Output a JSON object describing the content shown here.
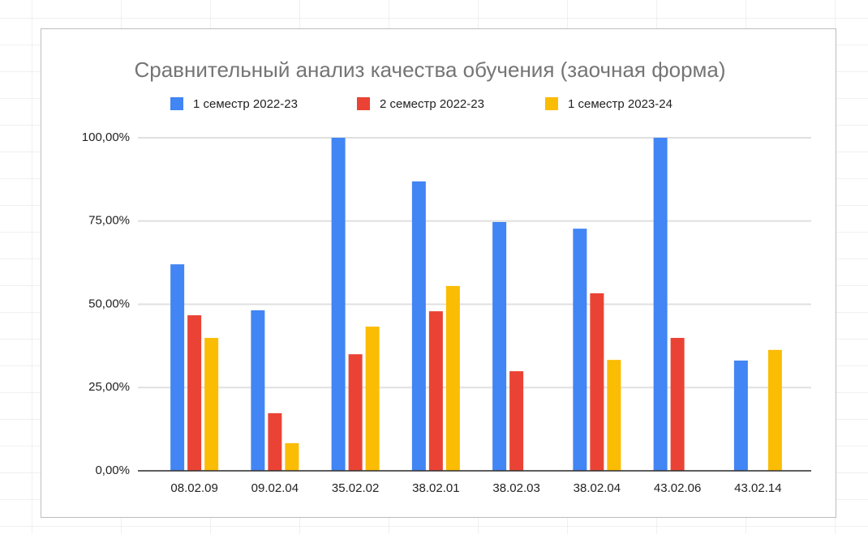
{
  "chart_data": {
    "type": "bar",
    "title": "Сравнительный анализ качества обучения (заочная форма)",
    "categories": [
      "08.02.09",
      "09.02.04",
      "35.02.02",
      "38.02.01",
      "38.02.03",
      "38.02.04",
      "43.02.06",
      "43.02.14"
    ],
    "series": [
      {
        "name": "1 семестр 2022-23",
        "color": "#4285f4",
        "values": [
          62.0,
          48.2,
          100,
          86.9,
          74.7,
          72.7,
          100,
          33.1
        ]
      },
      {
        "name": "2 семестр 2022-23",
        "color": "#ea4335",
        "values": [
          46.7,
          17.3,
          35.0,
          47.9,
          29.9,
          53.3,
          39.9,
          null
        ]
      },
      {
        "name": "1 семестр 2023-24",
        "color": "#fbbc04",
        "values": [
          39.9,
          8.3,
          43.3,
          55.5,
          null,
          33.3,
          null,
          36.3
        ]
      }
    ],
    "ylim": [
      0,
      100
    ],
    "yticks": [
      {
        "value": 0,
        "label": "0,00%"
      },
      {
        "value": 25,
        "label": "25,00%"
      },
      {
        "value": 50,
        "label": "50,00%"
      },
      {
        "value": 75,
        "label": "75,00%"
      },
      {
        "value": 100,
        "label": "100,00%"
      }
    ],
    "grid": true,
    "legend": "top"
  }
}
